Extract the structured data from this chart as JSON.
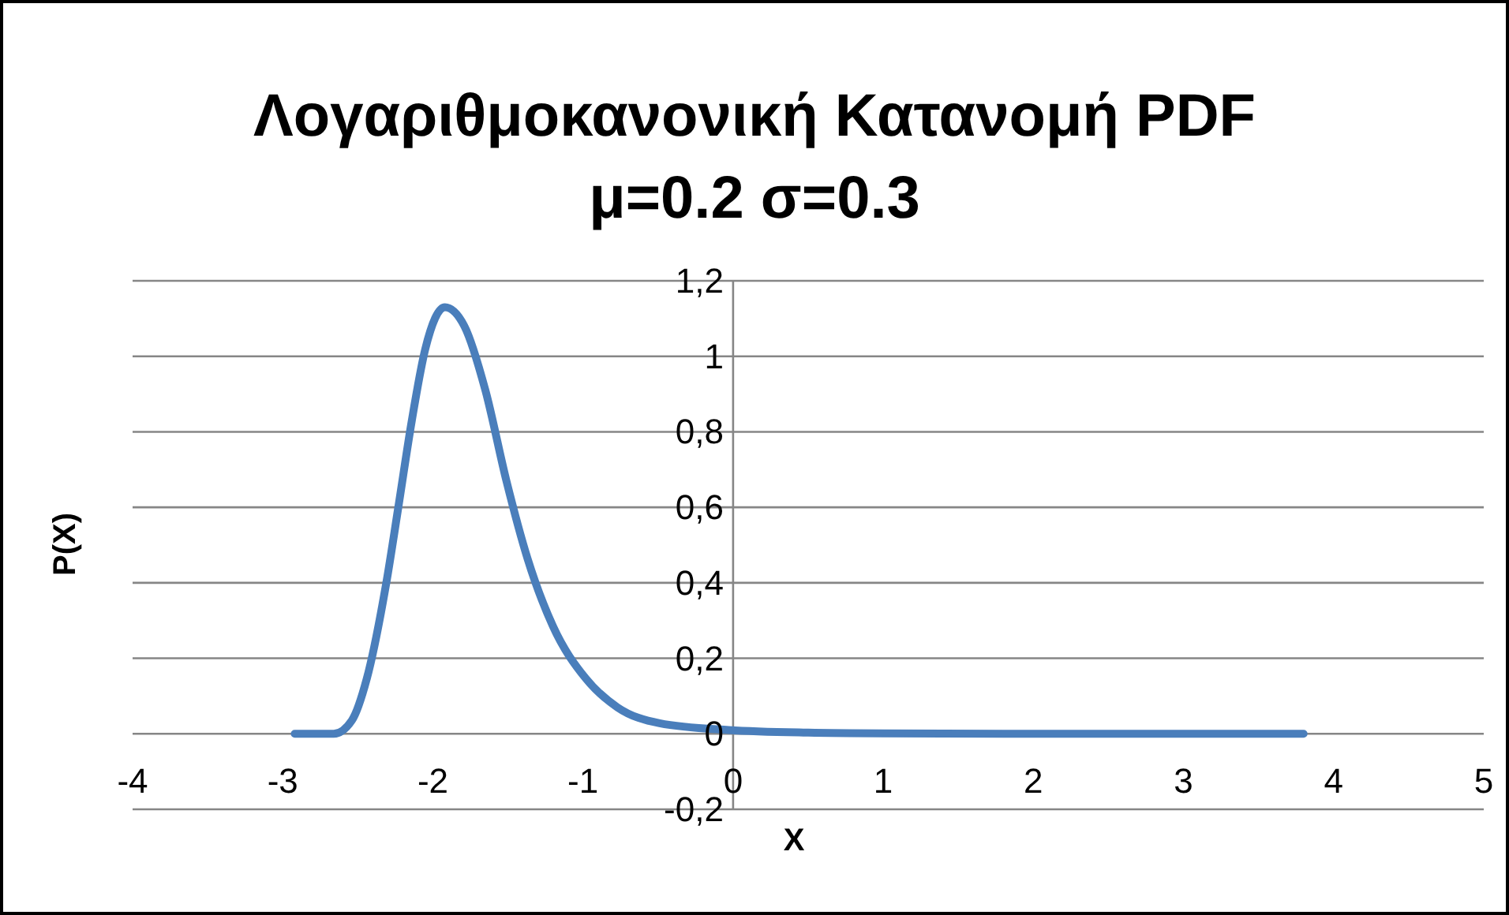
{
  "chart_data": {
    "type": "line",
    "title": "Λογαριθμοκανονική Κατανομή PDF",
    "subtitle": "μ=0.2 σ=0.3",
    "xlabel": "X",
    "ylabel": "P(X)",
    "x": [
      -2.92,
      -2.66,
      -2.54,
      -2.44,
      -2.31,
      -2.23,
      -2.14,
      -2.05,
      -1.92,
      -1.79,
      -1.65,
      -1.51,
      -1.37,
      -1.2,
      -0.98,
      -0.77,
      -0.49,
      -0.03,
      0.5,
      1,
      2,
      3,
      3.8
    ],
    "series": [
      {
        "color": "#4a7ebb",
        "values": [
          0,
          0,
          0.035,
          0.146,
          0.4,
          0.6,
          0.83,
          1.02,
          1.13,
          1.08,
          0.91,
          0.67,
          0.465,
          0.285,
          0.146,
          0.07,
          0.028,
          0.01,
          0.003,
          0.001,
          0,
          0,
          0
        ]
      }
    ],
    "xlim": [
      -4,
      5
    ],
    "xticks": [
      -4,
      -3,
      -2,
      -1,
      0,
      1,
      2,
      3,
      4,
      5
    ],
    "ylim": [
      -0.2,
      1.2
    ],
    "yticks": [
      {
        "value": -0.2,
        "label": "-0,2"
      },
      0,
      {
        "value": 0.2,
        "label": "0,2"
      },
      {
        "value": 0.4,
        "label": "0,4"
      },
      {
        "value": 0.6,
        "label": "0,6"
      },
      {
        "value": 0.8,
        "label": "0,8"
      },
      1,
      {
        "value": 1.2,
        "label": "1,2"
      }
    ],
    "grid": "y",
    "legend": false,
    "marker": "none",
    "line_style": "solid"
  }
}
